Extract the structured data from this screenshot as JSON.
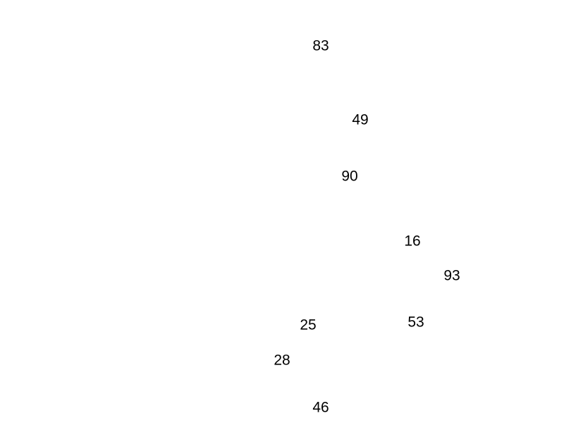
{
  "numbers": [
    "83",
    "49",
    "90",
    "16",
    "93",
    "25",
    "53",
    "28",
    "46"
  ]
}
